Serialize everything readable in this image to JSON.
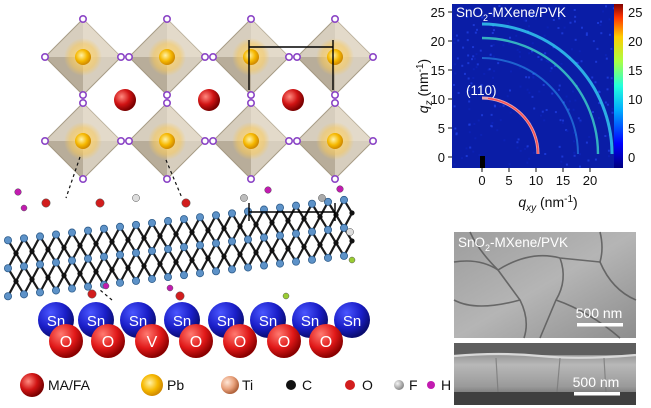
{
  "structure": {
    "sn_label": "Sn",
    "o_label": "O",
    "v_label": "V",
    "bottom_row": [
      "O",
      "O",
      "V",
      "O",
      "O",
      "O",
      "O"
    ]
  },
  "legend": [
    {
      "label": "MA/FA",
      "icon": "ma-fa-sphere-icon",
      "color": "#d61c1c"
    },
    {
      "label": "Pb",
      "icon": "pb-sphere-icon",
      "color": "#f5b400"
    },
    {
      "label": "Ti",
      "icon": "ti-sphere-icon",
      "color": "#e9a882"
    },
    {
      "label": "C",
      "icon": "c-dot-icon",
      "color": "#111111"
    },
    {
      "label": "O",
      "icon": "o-dot-icon",
      "color": "#d21d1d"
    },
    {
      "label": "F",
      "icon": "f-dot-icon",
      "color": "#b0b0b0"
    },
    {
      "label": "H",
      "icon": "h-dot-icon",
      "color": "#c21bb0"
    }
  ],
  "giwaxs": {
    "title": "SnO2-MXene/PVK",
    "title_base": "SnO",
    "title_sub": "2",
    "title_rest": "-MXene/PVK",
    "peak_label": "(110)",
    "y_axis_label": "q",
    "y_axis_sub": "z",
    "y_axis_unit": " (nm",
    "y_axis_sup": "-1",
    "x_axis_label": "q",
    "x_axis_sub": "xy",
    "x_axis_unit": " (nm",
    "x_axis_sup": "-1",
    "x_ticks": [
      "0",
      "5",
      "10",
      "15",
      "20"
    ],
    "y_ticks": [
      "0",
      "5",
      "10",
      "15",
      "20",
      "25"
    ],
    "colorbar_ticks": [
      "25",
      "20",
      "15",
      "10",
      "5",
      "0"
    ]
  },
  "sem_top": {
    "title_base": "SnO",
    "title_sub": "2",
    "title_rest": "-MXene/PVK",
    "scale_label": "500 nm"
  },
  "sem_bottom": {
    "scale_label": "500 nm"
  }
}
